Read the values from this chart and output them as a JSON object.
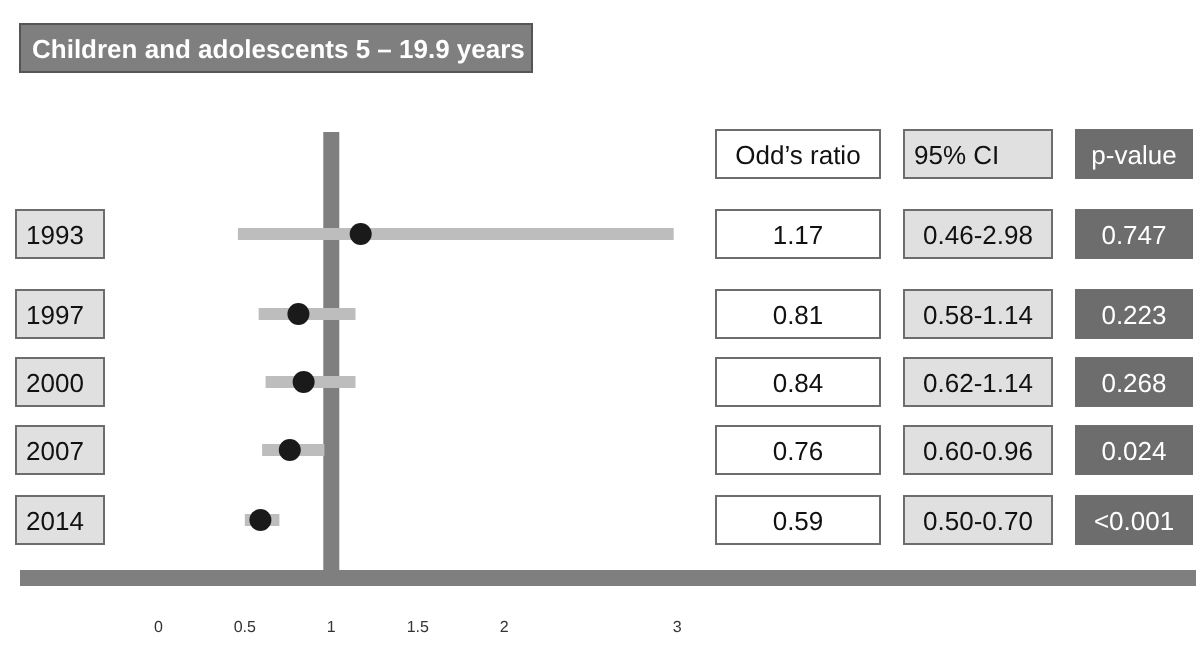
{
  "chart_data": {
    "type": "scatter",
    "orientation": "horizontal",
    "title": "Children and adolescents 5 – 19.9 years",
    "categories": [
      "1993",
      "1997",
      "2000",
      "2007",
      "2014"
    ],
    "values": [
      1.17,
      0.81,
      0.84,
      0.76,
      0.59
    ],
    "errors": [
      [
        0.46,
        2.98
      ],
      [
        0.58,
        1.14
      ],
      [
        0.62,
        1.14
      ],
      [
        0.6,
        0.96
      ],
      [
        0.5,
        0.7
      ]
    ],
    "color": "#1a1a1a",
    "marker": "circle",
    "xlim": [
      -0.8,
      6
    ],
    "xticks": [
      0,
      0.5,
      1,
      1.5,
      2,
      3
    ],
    "ref_lines": [
      {
        "axis": "x",
        "value": 1,
        "color": "#7f7f7f"
      }
    ],
    "annotations": [
      "Odd’s ratio",
      "95% CI",
      "p-value",
      "1.17",
      "0.46-2.98",
      "0.747",
      "0.81",
      "0.58-1.14",
      "0.223",
      "0.84",
      "0.62-1.14",
      "0.268",
      "0.76",
      "0.60-0.96",
      "0.024",
      "0.59",
      "0.50-0.70",
      "<0.001"
    ]
  }
}
